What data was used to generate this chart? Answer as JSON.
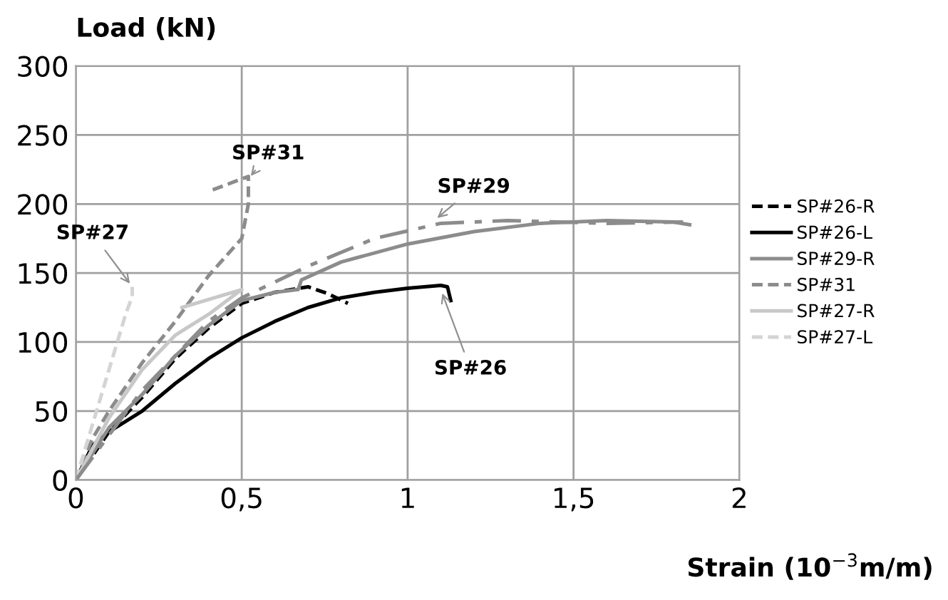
{
  "chart_data": {
    "type": "line",
    "ylabel": "Load (kN)",
    "xlabel": "Strain (10$^{−3}$m/m)",
    "xlim": [
      0,
      2
    ],
    "xticks": [
      0,
      {
        "value": 0.5,
        "label": "0,5"
      },
      1,
      {
        "value": 1.5,
        "label": "1,5"
      },
      2
    ],
    "ylim": [
      0,
      300
    ],
    "yticks": [
      0,
      50,
      100,
      150,
      200,
      250,
      300
    ],
    "grid": true,
    "legend": "right",
    "series": [
      {
        "name": "SP#26-R",
        "color": "#000000",
        "line_style": "dashed",
        "x": [
          0,
          0.1,
          0.2,
          0.3,
          0.4,
          0.5,
          0.6,
          0.7,
          0.76,
          0.82
        ],
        "values": [
          0,
          35,
          60,
          88,
          110,
          128,
          136,
          140,
          135,
          128
        ]
      },
      {
        "name": "SP#26-L",
        "color": "#000000",
        "line_style": "solid",
        "x": [
          0,
          0.05,
          0.1,
          0.2,
          0.3,
          0.4,
          0.5,
          0.6,
          0.7,
          0.8,
          0.9,
          1.0,
          1.05,
          1.1,
          1.12,
          1.13
        ],
        "values": [
          0,
          25,
          35,
          50,
          70,
          88,
          103,
          115,
          125,
          132,
          136,
          139,
          140,
          141,
          140,
          130
        ]
      },
      {
        "name": "SP#29-R",
        "color": "#8c8c8c",
        "line_style": "solid",
        "x": [
          0,
          0.1,
          0.2,
          0.3,
          0.4,
          0.5,
          0.6,
          0.67,
          0.68,
          0.8,
          1.0,
          1.2,
          1.4,
          1.6,
          1.8,
          1.85
        ],
        "values": [
          0,
          38,
          62,
          90,
          112,
          130,
          136,
          138,
          145,
          158,
          171,
          180,
          186,
          188,
          187,
          185
        ]
      },
      {
        "name": "SP#31",
        "color": "#8c8c8c",
        "line_style": "dashed",
        "x": [
          0,
          0.05,
          0.1,
          0.2,
          0.3,
          0.4,
          0.5,
          0.52,
          0.52,
          0.41
        ],
        "values": [
          0,
          30,
          50,
          85,
          115,
          148,
          175,
          200,
          220,
          210
        ]
      },
      {
        "name": "SP#27-R",
        "color": "#c8c8c8",
        "line_style": "solid",
        "x": [
          0,
          0.1,
          0.2,
          0.3,
          0.4,
          0.5,
          0.32
        ],
        "values": [
          0,
          45,
          80,
          105,
          120,
          138,
          125
        ]
      },
      {
        "name": "SP#27-L",
        "color": "#d4d4d4",
        "line_style": "dashed",
        "x": [
          0,
          0.05,
          0.1,
          0.15,
          0.17,
          0.17
        ],
        "values": [
          0,
          40,
          80,
          120,
          133,
          140
        ]
      },
      {
        "color": "#8c8c8c",
        "line_style": "dashdot",
        "x": [
          0,
          0.2,
          0.4,
          0.5,
          0.7,
          0.9,
          1.1,
          1.3,
          1.6,
          1.83
        ],
        "values": [
          0,
          65,
          115,
          132,
          155,
          175,
          186,
          188,
          186,
          187
        ]
      }
    ],
    "annotations": [
      {
        "text": "SP#31",
        "x": 0.52,
        "y": 218
      },
      {
        "text": "SP#29",
        "x": 1.08,
        "y": 188
      },
      {
        "text": "SP#27",
        "x": 0.17,
        "y": 140
      },
      {
        "text": "SP#26",
        "x": 1.1,
        "y": 138
      }
    ]
  }
}
